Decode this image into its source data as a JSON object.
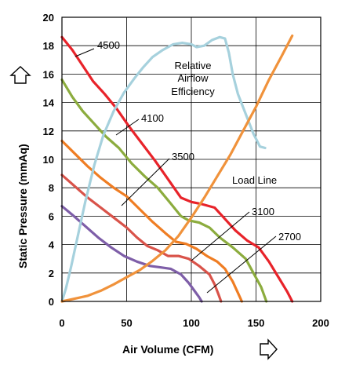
{
  "chart_data": {
    "type": "line",
    "xlabel": "Air Volume (CFM)",
    "ylabel": "Static Pressure (mmAq)",
    "xlim": [
      0,
      200
    ],
    "ylim": [
      0,
      20
    ],
    "xticks": [
      "0",
      "50",
      "100",
      "150",
      "200"
    ],
    "yticks": [
      "0",
      "2",
      "4",
      "6",
      "8",
      "10",
      "12",
      "14",
      "16",
      "18",
      "20"
    ],
    "grid": "horizontal and vertical",
    "series": [
      {
        "name": "4500",
        "color": "#e8232a",
        "points": [
          [
            0,
            18.6
          ],
          [
            8,
            17.7
          ],
          [
            16,
            16.6
          ],
          [
            24,
            15.5
          ],
          [
            33,
            14.6
          ],
          [
            42,
            13.6
          ],
          [
            52,
            12.3
          ],
          [
            62,
            11.1
          ],
          [
            72,
            9.9
          ],
          [
            82,
            8.6
          ],
          [
            92,
            7.3
          ],
          [
            100,
            7.0
          ],
          [
            108,
            6.85
          ],
          [
            118,
            6.6
          ],
          [
            125,
            5.9
          ],
          [
            134,
            5.0
          ],
          [
            143,
            4.3
          ],
          [
            152,
            3.8
          ],
          [
            160,
            2.8
          ],
          [
            168,
            1.6
          ],
          [
            174,
            0.7
          ],
          [
            178,
            0
          ]
        ]
      },
      {
        "name": "4100",
        "color": "#8cac3e",
        "points": [
          [
            0,
            15.6
          ],
          [
            8,
            14.4
          ],
          [
            16,
            13.4
          ],
          [
            24,
            12.6
          ],
          [
            34,
            11.6
          ],
          [
            44,
            10.8
          ],
          [
            54,
            9.7
          ],
          [
            64,
            8.8
          ],
          [
            74,
            8.0
          ],
          [
            84,
            6.9
          ],
          [
            92,
            6.0
          ],
          [
            98,
            5.7
          ],
          [
            106,
            5.55
          ],
          [
            114,
            5.2
          ],
          [
            122,
            4.5
          ],
          [
            132,
            3.8
          ],
          [
            142,
            3.0
          ],
          [
            148,
            2.0
          ],
          [
            154,
            1.0
          ],
          [
            158,
            0
          ]
        ]
      },
      {
        "name": "3500",
        "color": "#ef7d23",
        "points": [
          [
            0,
            11.3
          ],
          [
            10,
            10.4
          ],
          [
            20,
            9.5
          ],
          [
            30,
            8.7
          ],
          [
            40,
            8.0
          ],
          [
            50,
            7.4
          ],
          [
            60,
            6.5
          ],
          [
            70,
            5.6
          ],
          [
            80,
            4.8
          ],
          [
            88,
            4.2
          ],
          [
            96,
            4.05
          ],
          [
            104,
            3.7
          ],
          [
            112,
            3.2
          ],
          [
            120,
            2.8
          ],
          [
            126,
            2.3
          ],
          [
            132,
            1.4
          ],
          [
            136,
            0.6
          ],
          [
            139,
            0
          ]
        ]
      },
      {
        "name": "3100",
        "color": "#d9534a",
        "points": [
          [
            0,
            8.9
          ],
          [
            10,
            8.1
          ],
          [
            20,
            7.3
          ],
          [
            30,
            6.6
          ],
          [
            40,
            5.9
          ],
          [
            50,
            5.2
          ],
          [
            58,
            4.5
          ],
          [
            66,
            3.9
          ],
          [
            74,
            3.6
          ],
          [
            82,
            3.2
          ],
          [
            90,
            3.2
          ],
          [
            98,
            3.0
          ],
          [
            106,
            2.5
          ],
          [
            114,
            1.9
          ],
          [
            118,
            1.2
          ],
          [
            121,
            0.5
          ],
          [
            123,
            0
          ]
        ]
      },
      {
        "name": "2700",
        "color": "#7e5ea8",
        "points": [
          [
            0,
            6.7
          ],
          [
            8,
            6.1
          ],
          [
            18,
            5.3
          ],
          [
            28,
            4.5
          ],
          [
            38,
            3.8
          ],
          [
            48,
            3.2
          ],
          [
            58,
            2.8
          ],
          [
            68,
            2.5
          ],
          [
            76,
            2.4
          ],
          [
            84,
            2.3
          ],
          [
            92,
            1.9
          ],
          [
            98,
            1.3
          ],
          [
            102,
            0.8
          ],
          [
            106,
            0.3
          ],
          [
            108,
            0
          ]
        ]
      },
      {
        "name": "Relative Airflow Efficiency",
        "color": "#a6d1dd",
        "points": [
          [
            0,
            0
          ],
          [
            3,
            0.9
          ],
          [
            7,
            2.4
          ],
          [
            12,
            4.5
          ],
          [
            18,
            7.0
          ],
          [
            25,
            9.6
          ],
          [
            32,
            11.7
          ],
          [
            40,
            13.4
          ],
          [
            48,
            14.7
          ],
          [
            56,
            15.7
          ],
          [
            63,
            16.5
          ],
          [
            70,
            17.2
          ],
          [
            78,
            17.7
          ],
          [
            86,
            18.1
          ],
          [
            93,
            18.2
          ],
          [
            100,
            18.1
          ],
          [
            104,
            17.9
          ],
          [
            110,
            18.0
          ],
          [
            116,
            18.4
          ],
          [
            122,
            18.6
          ],
          [
            126,
            18.5
          ],
          [
            129,
            17.5
          ],
          [
            132,
            16.0
          ],
          [
            136,
            14.6
          ],
          [
            142,
            13.2
          ],
          [
            148,
            11.8
          ],
          [
            153,
            10.9
          ],
          [
            157,
            10.8
          ]
        ]
      },
      {
        "name": "Load Line",
        "color": "#f0923b",
        "points": [
          [
            0,
            0
          ],
          [
            10,
            0.2
          ],
          [
            20,
            0.4
          ],
          [
            30,
            0.75
          ],
          [
            40,
            1.2
          ],
          [
            50,
            1.7
          ],
          [
            60,
            2.2
          ],
          [
            70,
            2.85
          ],
          [
            80,
            3.6
          ],
          [
            90,
            4.6
          ],
          [
            100,
            5.9
          ],
          [
            110,
            7.3
          ],
          [
            120,
            8.8
          ],
          [
            130,
            10.3
          ],
          [
            140,
            12.0
          ],
          [
            150,
            13.7
          ],
          [
            160,
            15.6
          ],
          [
            170,
            17.3
          ],
          [
            178,
            18.7
          ]
        ]
      }
    ],
    "annotations": [
      {
        "text": "4500"
      },
      {
        "text": "4100"
      },
      {
        "text": "3500"
      },
      {
        "text": "3100"
      },
      {
        "text": "2700"
      },
      {
        "text": "Relative"
      },
      {
        "text": "Airflow"
      },
      {
        "text": "Efficiency"
      },
      {
        "text": "Load Line"
      }
    ]
  }
}
